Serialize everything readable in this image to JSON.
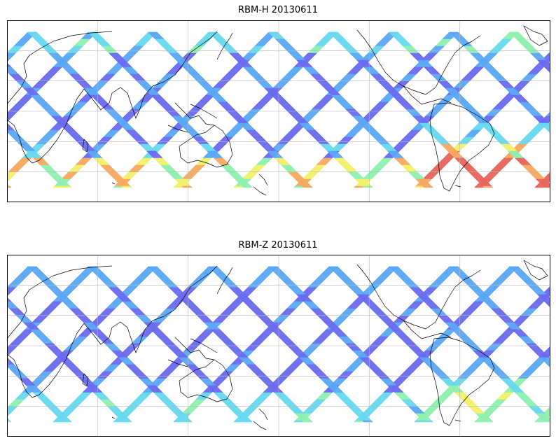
{
  "panels": [
    {
      "title": "RBM-H 20130611",
      "band_colors": [
        "#6a6af0",
        "#5aa6f5",
        "#66d8ee",
        "#8ef0b0",
        "#f2f06a",
        "#f7a860",
        "#e8645c"
      ],
      "south_intensity": 0.9,
      "north_intensity": 0.55,
      "mid_intensity": 0.05
    },
    {
      "title": "RBM-Z 20130611",
      "band_colors": [
        "#6a6af0",
        "#5aa6f5",
        "#66d8ee",
        "#8ef0b0",
        "#f2f06a",
        "#f7a860",
        "#e8645c"
      ],
      "south_intensity": 0.45,
      "north_intensity": 0.25,
      "mid_intensity": 0.0
    }
  ]
}
